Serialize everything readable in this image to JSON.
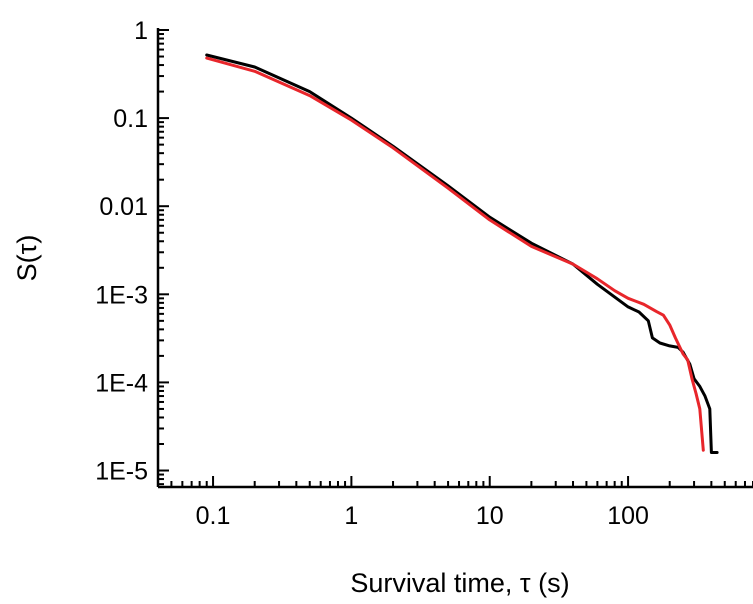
{
  "chart_data": {
    "type": "line",
    "xlabel": "Survival time, τ (s)",
    "ylabel": "S(τ)",
    "x_scale": "log",
    "y_scale": "log",
    "xlim": [
      0.04,
      800
    ],
    "ylim": [
      6.5e-06,
      1
    ],
    "x_ticks": [
      {
        "value": 0.1,
        "label": "0.1"
      },
      {
        "value": 1,
        "label": "1"
      },
      {
        "value": 10,
        "label": "10"
      },
      {
        "value": 100,
        "label": "100"
      }
    ],
    "y_ticks": [
      {
        "value": 1,
        "label": "1"
      },
      {
        "value": 0.1,
        "label": "0.1"
      },
      {
        "value": 0.01,
        "label": "0.01"
      },
      {
        "value": 0.001,
        "label": "1E-3"
      },
      {
        "value": 0.0001,
        "label": "1E-4"
      },
      {
        "value": 1e-05,
        "label": "1E-5"
      }
    ],
    "grid": false,
    "series": [
      {
        "color": "#000000",
        "points": [
          [
            0.09,
            0.52
          ],
          [
            0.2,
            0.38
          ],
          [
            0.5,
            0.2
          ],
          [
            1,
            0.1
          ],
          [
            2,
            0.048
          ],
          [
            5,
            0.017
          ],
          [
            10,
            0.0075
          ],
          [
            20,
            0.0038
          ],
          [
            40,
            0.0022
          ],
          [
            60,
            0.0013
          ],
          [
            80,
            0.00093
          ],
          [
            100,
            0.00072
          ],
          [
            120,
            0.00063
          ],
          [
            140,
            0.0005
          ],
          [
            150,
            0.00032
          ],
          [
            170,
            0.00028
          ],
          [
            200,
            0.00026
          ],
          [
            230,
            0.00025
          ],
          [
            250,
            0.00022
          ],
          [
            280,
            0.00016
          ],
          [
            300,
            0.00011
          ],
          [
            330,
            9e-05
          ],
          [
            360,
            7e-05
          ],
          [
            390,
            5e-05
          ],
          [
            400,
            1.6e-05
          ],
          [
            440,
            1.6e-05
          ]
        ]
      },
      {
        "color": "#e8262b",
        "points": [
          [
            0.09,
            0.48
          ],
          [
            0.2,
            0.34
          ],
          [
            0.5,
            0.18
          ],
          [
            1,
            0.095
          ],
          [
            2,
            0.046
          ],
          [
            5,
            0.016
          ],
          [
            10,
            0.007
          ],
          [
            20,
            0.0035
          ],
          [
            40,
            0.0022
          ],
          [
            60,
            0.0015
          ],
          [
            80,
            0.0011
          ],
          [
            100,
            0.0009
          ],
          [
            130,
            0.00077
          ],
          [
            160,
            0.00064
          ],
          [
            180,
            0.00058
          ],
          [
            200,
            0.00045
          ],
          [
            220,
            0.00032
          ],
          [
            250,
            0.00021
          ],
          [
            270,
            0.00018
          ],
          [
            290,
            0.00011
          ],
          [
            310,
            7.5e-05
          ],
          [
            330,
            5e-05
          ],
          [
            350,
            1.7e-05
          ]
        ]
      }
    ]
  }
}
